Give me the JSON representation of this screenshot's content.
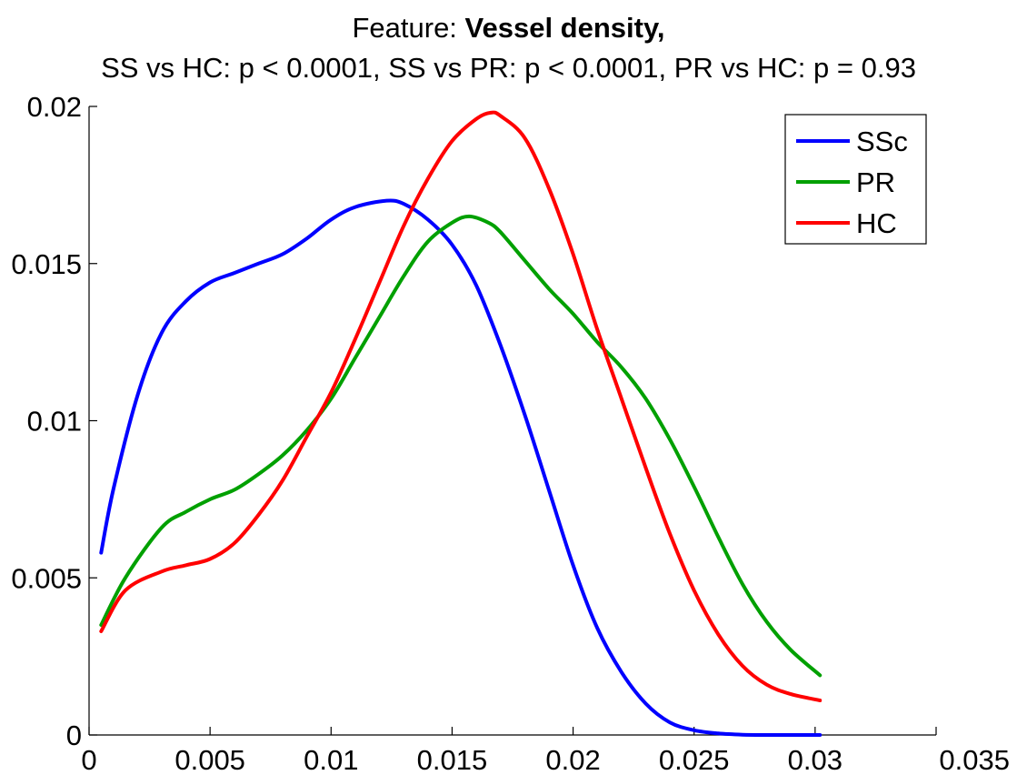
{
  "title": {
    "prefix": "Feature: ",
    "feature": "Vessel density,",
    "subtitle": "SS vs HC: p < 0.0001, SS vs PR: p < 0.0001, PR vs HC: p = 0.93"
  },
  "chart_data": {
    "type": "line",
    "xlim": [
      0,
      0.035
    ],
    "ylim": [
      0,
      0.02
    ],
    "xticks": [
      0,
      0.005,
      0.01,
      0.015,
      0.02,
      0.025,
      0.03,
      0.035
    ],
    "xtick_labels": [
      "0",
      "0.005",
      "0.01",
      "0.015",
      "0.02",
      "0.025",
      "0.03",
      "0.035"
    ],
    "yticks": [
      0,
      0.005,
      0.01,
      0.015,
      0.02
    ],
    "ytick_labels": [
      "0",
      "0.005",
      "0.01",
      "0.015",
      "0.02"
    ],
    "grid": false,
    "legend_position": "top-right",
    "series": [
      {
        "name": "SSc",
        "color": "#0000ff",
        "points": [
          [
            0.0005,
            0.0058
          ],
          [
            0.001,
            0.0078
          ],
          [
            0.002,
            0.0108
          ],
          [
            0.003,
            0.0128
          ],
          [
            0.004,
            0.0138
          ],
          [
            0.005,
            0.0144
          ],
          [
            0.006,
            0.0147
          ],
          [
            0.007,
            0.015
          ],
          [
            0.008,
            0.0153
          ],
          [
            0.009,
            0.0158
          ],
          [
            0.01,
            0.0164
          ],
          [
            0.011,
            0.0168
          ],
          [
            0.0123,
            0.017
          ],
          [
            0.013,
            0.0169
          ],
          [
            0.014,
            0.0164
          ],
          [
            0.015,
            0.0156
          ],
          [
            0.016,
            0.0143
          ],
          [
            0.017,
            0.0124
          ],
          [
            0.018,
            0.0102
          ],
          [
            0.019,
            0.0078
          ],
          [
            0.02,
            0.0054
          ],
          [
            0.021,
            0.0034
          ],
          [
            0.022,
            0.002
          ],
          [
            0.023,
            0.001
          ],
          [
            0.024,
            0.0004
          ],
          [
            0.025,
            0.00015
          ],
          [
            0.026,
            5e-05
          ],
          [
            0.027,
            1e-05
          ],
          [
            0.028,
            0
          ],
          [
            0.0302,
            0
          ]
        ]
      },
      {
        "name": "PR",
        "color": "#00a000",
        "points": [
          [
            0.0005,
            0.0035
          ],
          [
            0.0015,
            0.005
          ],
          [
            0.003,
            0.0066
          ],
          [
            0.004,
            0.0071
          ],
          [
            0.005,
            0.0075
          ],
          [
            0.006,
            0.0078
          ],
          [
            0.007,
            0.0083
          ],
          [
            0.008,
            0.0089
          ],
          [
            0.009,
            0.0097
          ],
          [
            0.01,
            0.0107
          ],
          [
            0.011,
            0.012
          ],
          [
            0.012,
            0.0133
          ],
          [
            0.013,
            0.0146
          ],
          [
            0.014,
            0.0157
          ],
          [
            0.015,
            0.0163
          ],
          [
            0.0157,
            0.0165
          ],
          [
            0.0165,
            0.0163
          ],
          [
            0.017,
            0.016
          ],
          [
            0.018,
            0.0151
          ],
          [
            0.019,
            0.0142
          ],
          [
            0.02,
            0.0134
          ],
          [
            0.021,
            0.0125
          ],
          [
            0.022,
            0.0117
          ],
          [
            0.023,
            0.0107
          ],
          [
            0.024,
            0.0094
          ],
          [
            0.025,
            0.0079
          ],
          [
            0.026,
            0.0063
          ],
          [
            0.027,
            0.0048
          ],
          [
            0.028,
            0.0036
          ],
          [
            0.029,
            0.0027
          ],
          [
            0.0302,
            0.0019
          ]
        ]
      },
      {
        "name": "HC",
        "color": "#ff0000",
        "points": [
          [
            0.0005,
            0.0033
          ],
          [
            0.0015,
            0.0046
          ],
          [
            0.003,
            0.0052
          ],
          [
            0.004,
            0.0054
          ],
          [
            0.005,
            0.0056
          ],
          [
            0.006,
            0.0061
          ],
          [
            0.007,
            0.007
          ],
          [
            0.008,
            0.0081
          ],
          [
            0.009,
            0.0095
          ],
          [
            0.01,
            0.0109
          ],
          [
            0.011,
            0.0126
          ],
          [
            0.012,
            0.0144
          ],
          [
            0.013,
            0.0162
          ],
          [
            0.014,
            0.0177
          ],
          [
            0.015,
            0.0189
          ],
          [
            0.016,
            0.0196
          ],
          [
            0.0166,
            0.0198
          ],
          [
            0.017,
            0.0197
          ],
          [
            0.018,
            0.019
          ],
          [
            0.019,
            0.0174
          ],
          [
            0.02,
            0.0153
          ],
          [
            0.021,
            0.0129
          ],
          [
            0.022,
            0.0107
          ],
          [
            0.023,
            0.0085
          ],
          [
            0.024,
            0.0064
          ],
          [
            0.025,
            0.0046
          ],
          [
            0.026,
            0.0032
          ],
          [
            0.027,
            0.0022
          ],
          [
            0.028,
            0.0016
          ],
          [
            0.029,
            0.0013
          ],
          [
            0.0302,
            0.0011
          ]
        ]
      }
    ]
  }
}
